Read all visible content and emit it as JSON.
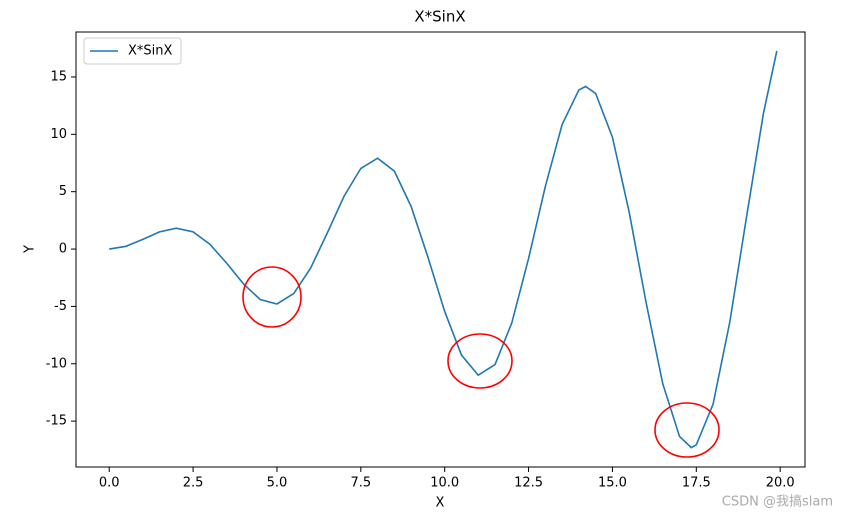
{
  "chart_data": {
    "type": "line",
    "title": "X*SinX",
    "x_label": "X",
    "y_label": "Y",
    "x": [
      0,
      0.5,
      1,
      1.5,
      2,
      2.5,
      3,
      3.5,
      4,
      4.5,
      5,
      5.5,
      6,
      6.5,
      7,
      7.5,
      8,
      8.5,
      9,
      9.5,
      10,
      10.5,
      11,
      11.5,
      12,
      12.5,
      13,
      13.5,
      14,
      14.2,
      14.5,
      15,
      15.5,
      16,
      16.5,
      17,
      17.35,
      17.5,
      18,
      18.5,
      19,
      19.5,
      19.9
    ],
    "series": [
      {
        "name": "X*SinX",
        "color": "#1f77b4",
        "values": [
          0,
          0.24,
          0.84,
          1.5,
          1.82,
          1.5,
          0.42,
          -1.23,
          -3.03,
          -4.4,
          -4.79,
          -3.88,
          -1.68,
          1.4,
          4.6,
          7.03,
          7.92,
          6.79,
          3.71,
          -0.71,
          -5.44,
          -9.24,
          -11.0,
          -10.07,
          -6.44,
          -0.83,
          5.46,
          10.85,
          13.87,
          14.17,
          13.56,
          9.75,
          3.2,
          -4.61,
          -11.74,
          -16.34,
          -17.31,
          -17.07,
          -13.52,
          -6.34,
          2.85,
          11.81,
          17.27
        ]
      }
    ],
    "xlim": [
      -0.99,
      20.74
    ],
    "ylim": [
      -19.0,
      18.92
    ],
    "xticks": [
      {
        "value": 0,
        "label": "0.0"
      },
      {
        "value": 2.5,
        "label": "2.5"
      },
      {
        "value": 5,
        "label": "5.0"
      },
      {
        "value": 7.5,
        "label": "7.5"
      },
      {
        "value": 10,
        "label": "10.0"
      },
      {
        "value": 12.5,
        "label": "12.5"
      },
      {
        "value": 15,
        "label": "15.0"
      },
      {
        "value": 17.5,
        "label": "17.5"
      },
      {
        "value": 20,
        "label": "20.0"
      }
    ],
    "yticks": [
      -15,
      -10,
      -5,
      0,
      5,
      10,
      15
    ],
    "legend": "upper left",
    "watermark": "CSDN @我搞slam"
  }
}
